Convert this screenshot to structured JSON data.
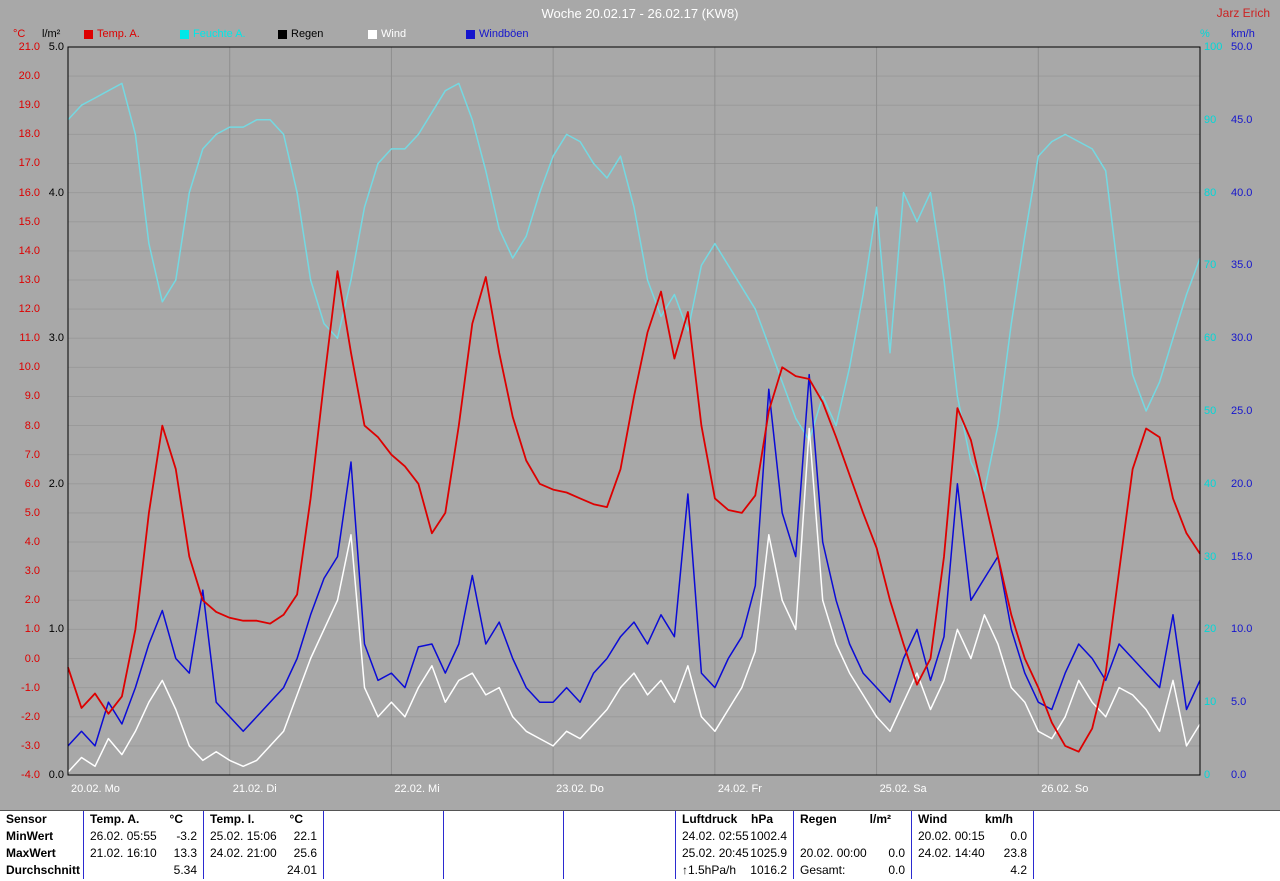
{
  "window": {
    "title": "Woche 20.02.17 - 26.02.17 (KW8)",
    "station": "Jarz Erich"
  },
  "legend": {
    "items": [
      {
        "label": "Temp. A.",
        "color": "#dd0000"
      },
      {
        "label": "Feuchte A.",
        "color": "#00e8e8"
      },
      {
        "label": "Regen",
        "color": "#000000"
      },
      {
        "label": "Wind",
        "color": "#ffffff"
      },
      {
        "label": "Windböen",
        "color": "#1515cd"
      }
    ]
  },
  "axes": {
    "temp": {
      "unit": "°C",
      "color": "#dd0000",
      "min": -4.0,
      "max": 21.0,
      "ticks": [
        "21.0",
        "20.0",
        "19.0",
        "18.0",
        "17.0",
        "16.0",
        "15.0",
        "14.0",
        "13.0",
        "12.0",
        "11.0",
        "10.0",
        "9.0",
        "8.0",
        "7.0",
        "6.0",
        "5.0",
        "4.0",
        "3.0",
        "2.0",
        "1.0",
        "0.0",
        "-1.0",
        "-2.0",
        "-3.0",
        "-4.0"
      ]
    },
    "rain": {
      "unit": "l/m²",
      "color": "#000000",
      "min": 0.0,
      "max": 5.0,
      "ticks": [
        "5.0",
        "4.0",
        "3.0",
        "2.0",
        "1.0",
        "0.0"
      ]
    },
    "humidity": {
      "unit": "%",
      "color": "#00d8d8",
      "min": 0,
      "max": 100,
      "ticks": [
        "100",
        "90",
        "80",
        "70",
        "60",
        "50",
        "40",
        "30",
        "20",
        "10",
        "0"
      ]
    },
    "wind": {
      "unit": "km/h",
      "color": "#1515cd",
      "min": 0.0,
      "max": 50.0,
      "ticks": [
        "50.0",
        "45.0",
        "40.0",
        "35.0",
        "30.0",
        "25.0",
        "20.0",
        "15.0",
        "10.0",
        "5.0",
        "0.0"
      ]
    },
    "days": [
      "20.02. Mo",
      "21.02. Di",
      "22.02. Mi",
      "23.02. Do",
      "24.02. Fr",
      "25.02. Sa",
      "26.02. So"
    ]
  },
  "chart_data": {
    "type": "line",
    "title": "Woche 20.02.17 - 26.02.17 (KW8)",
    "grid": "on",
    "x_axis": {
      "start_hour": 0,
      "end_hour": 168,
      "step_hours": 2,
      "day_labels": [
        "20.02. Mo",
        "21.02. Di",
        "22.02. Mi",
        "23.02. Do",
        "24.02. Fr",
        "25.02. Sa",
        "26.02. So"
      ]
    },
    "series": [
      {
        "id": "temp-a",
        "name": "Temp. A.",
        "unit": "°C",
        "color": "#dd0000",
        "axis_min": -4,
        "axis_max": 21,
        "values": [
          -0.3,
          -1.7,
          -1.2,
          -1.9,
          -1.3,
          1.0,
          5.0,
          8.0,
          6.5,
          3.5,
          2.0,
          1.6,
          1.4,
          1.3,
          1.3,
          1.2,
          1.5,
          2.2,
          5.5,
          9.5,
          13.3,
          10.5,
          8.0,
          7.6,
          7.0,
          6.6,
          6.0,
          4.3,
          5.0,
          8.0,
          11.5,
          13.1,
          10.5,
          8.3,
          6.8,
          6.0,
          5.8,
          5.7,
          5.5,
          5.3,
          5.2,
          6.5,
          9.0,
          11.2,
          12.6,
          10.3,
          11.9,
          8.0,
          5.5,
          5.1,
          5.0,
          5.6,
          8.5,
          10.0,
          9.7,
          9.6,
          8.8,
          7.6,
          6.3,
          5.0,
          3.8,
          2.0,
          0.5,
          -0.9,
          0.0,
          3.5,
          8.6,
          7.5,
          5.5,
          3.5,
          1.5,
          0.0,
          -1.0,
          -2.2,
          -3.0,
          -3.2,
          -2.4,
          -0.5,
          3.0,
          6.5,
          7.9,
          7.6,
          5.5,
          4.3,
          3.6
        ]
      },
      {
        "id": "feuchte-a",
        "name": "Feuchte A.",
        "unit": "%",
        "color": "#74d9e2",
        "axis_min": 0,
        "axis_max": 100,
        "values": [
          90,
          92,
          93,
          94,
          95,
          88,
          73,
          65,
          68,
          80,
          86,
          88,
          89,
          89,
          90,
          90,
          88,
          80,
          68,
          62,
          60,
          68,
          78,
          84,
          86,
          86,
          88,
          91,
          94,
          95,
          90,
          83,
          75,
          71,
          74,
          80,
          85,
          88,
          87,
          84,
          82,
          85,
          78,
          68,
          63,
          66,
          61,
          70,
          73,
          70,
          67,
          64,
          59,
          54,
          49,
          46,
          52,
          48,
          56,
          66,
          78,
          58,
          80,
          76,
          80,
          68,
          52,
          43,
          39,
          48,
          62,
          74,
          85,
          87,
          88,
          87,
          86,
          83,
          68,
          55,
          50,
          54,
          60,
          66,
          71
        ]
      },
      {
        "id": "regen",
        "name": "Regen",
        "unit": "l/m²",
        "color": "#000000",
        "axis_min": 0,
        "axis_max": 5,
        "constant": 0.0
      },
      {
        "id": "wind",
        "name": "Wind",
        "unit": "km/h",
        "color": "#ffffff",
        "axis_min": 0,
        "axis_max": 50,
        "values": [
          0.2,
          1.2,
          0.6,
          2.5,
          1.4,
          3.0,
          5.0,
          6.5,
          4.5,
          2.0,
          1.0,
          1.6,
          1.0,
          0.6,
          1.0,
          2.0,
          3.0,
          5.5,
          8.0,
          10.0,
          12.0,
          16.5,
          6.0,
          4.0,
          5.0,
          4.0,
          6.0,
          7.5,
          5.0,
          6.5,
          7.0,
          5.5,
          6.0,
          4.0,
          3.0,
          2.5,
          2.0,
          3.0,
          2.5,
          3.5,
          4.5,
          6.0,
          7.0,
          5.5,
          6.5,
          5.0,
          7.5,
          4.0,
          3.0,
          4.5,
          6.0,
          8.5,
          16.5,
          12.0,
          10.0,
          23.8,
          12.0,
          9.0,
          7.0,
          5.5,
          4.0,
          3.0,
          5.0,
          7.0,
          4.5,
          6.5,
          10.0,
          8.0,
          11.0,
          9.0,
          6.0,
          5.0,
          3.0,
          2.5,
          4.0,
          6.5,
          5.0,
          4.0,
          6.0,
          5.5,
          4.5,
          3.0,
          6.5,
          2.0,
          3.5
        ]
      },
      {
        "id": "windboeen",
        "name": "Windböen",
        "unit": "km/h",
        "color": "#0b0bd6",
        "axis_min": 0,
        "axis_max": 50,
        "values": [
          2.0,
          3.0,
          2.0,
          5.0,
          3.5,
          6.0,
          9.0,
          11.3,
          8.0,
          7.0,
          12.7,
          5.0,
          4.0,
          3.0,
          4.0,
          5.0,
          6.0,
          8.0,
          11.0,
          13.5,
          15.0,
          21.5,
          9.0,
          6.5,
          7.0,
          6.0,
          8.8,
          9.0,
          7.0,
          9.0,
          13.7,
          9.0,
          10.5,
          8.0,
          6.0,
          5.0,
          5.0,
          6.0,
          5.0,
          7.0,
          8.0,
          9.5,
          10.5,
          9.0,
          11.0,
          9.5,
          19.3,
          7.0,
          6.0,
          8.0,
          9.5,
          13.0,
          26.5,
          18.0,
          15.0,
          27.5,
          16.0,
          12.0,
          9.0,
          7.0,
          6.0,
          5.0,
          8.0,
          10.0,
          6.5,
          9.5,
          20.0,
          12.0,
          13.5,
          15.0,
          10.0,
          7.0,
          5.0,
          4.5,
          7.0,
          9.0,
          8.0,
          6.5,
          9.0,
          8.0,
          7.0,
          6.0,
          11.0,
          4.5,
          6.5
        ]
      }
    ]
  },
  "table": {
    "corner": "Sensor",
    "row_labels": [
      "MinWert",
      "MaxWert",
      "Durchschnitt"
    ],
    "columns": [
      {
        "header": "Temp. A.",
        "unit": "°C",
        "cells": [
          [
            "26.02. 05:55",
            "-3.2"
          ],
          [
            "21.02. 16:10",
            "13.3"
          ],
          [
            "",
            "5.34"
          ]
        ]
      },
      {
        "header": "Temp. I.",
        "unit": "°C",
        "cells": [
          [
            "25.02. 15:06",
            "22.1"
          ],
          [
            "24.02. 21:00",
            "25.6"
          ],
          [
            "",
            "24.01"
          ]
        ]
      },
      {
        "header": "",
        "unit": "",
        "cells": [
          [
            "",
            ""
          ],
          [
            "",
            ""
          ],
          [
            "",
            ""
          ]
        ]
      },
      {
        "header": "",
        "unit": "",
        "cells": [
          [
            "",
            ""
          ],
          [
            "",
            ""
          ],
          [
            "",
            ""
          ]
        ]
      },
      {
        "header": "",
        "unit": "",
        "cells": [
          [
            "",
            ""
          ],
          [
            "",
            ""
          ],
          [
            "",
            ""
          ]
        ]
      },
      {
        "header": "Luftdruck",
        "unit": "hPa",
        "cells": [
          [
            "24.02. 02:55",
            "1002.4"
          ],
          [
            "25.02. 20:45",
            "1025.9"
          ],
          [
            "↑1.5hPa/h",
            "1016.2"
          ]
        ]
      },
      {
        "header": "Regen",
        "unit": "l/m²",
        "cells": [
          [
            "",
            ""
          ],
          [
            "20.02. 00:00",
            "0.0"
          ],
          [
            "Gesamt:",
            "0.0"
          ]
        ]
      },
      {
        "header": "Wind",
        "unit": "km/h",
        "cells": [
          [
            "20.02. 00:15",
            "0.0"
          ],
          [
            "24.02. 14:40",
            "23.8"
          ],
          [
            "",
            "4.2"
          ]
        ]
      },
      {
        "header": "",
        "unit": "",
        "cells": [
          [
            "",
            ""
          ],
          [
            "",
            ""
          ],
          [
            "",
            ""
          ]
        ]
      }
    ]
  }
}
